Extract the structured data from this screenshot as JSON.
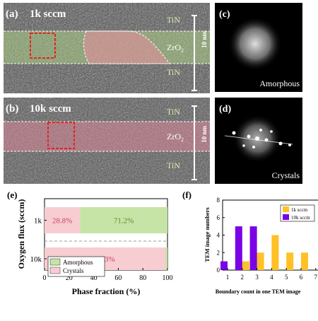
{
  "panels": {
    "a": {
      "tag": "(a)",
      "condition": "1k sccm",
      "top_layer": "TiN",
      "mid_layer": "ZrO",
      "mid_sub": "2",
      "bottom_layer": "TiN",
      "scale": "10 nm"
    },
    "b": {
      "tag": "(b)",
      "condition": "10k sccm",
      "top_layer": "TiN",
      "mid_layer": "ZrO",
      "mid_sub": "2",
      "bottom_layer": "TiN",
      "scale": "10 nm"
    },
    "c": {
      "tag": "(c)",
      "caption": "Amorphous"
    },
    "d": {
      "tag": "(d)",
      "caption": "Crystals"
    }
  },
  "colors": {
    "amorphous": "#c5e4a6",
    "crystals": "#f7cdd2",
    "bar_1k": "#ffc125",
    "bar_10k": "#7a00e6",
    "highlight_box": "#e3261e",
    "pct_crystal_text": "#cc3c6c",
    "pct_amorph_text": "#5a8a2a"
  },
  "chart_data": [
    {
      "type": "bar",
      "orientation": "horizontal",
      "stacked": true,
      "tag": "(e)",
      "categories": [
        "1k",
        "10k"
      ],
      "series": [
        {
          "name": "Crystals",
          "values": [
            28.8,
            98.3
          ],
          "labels": [
            "28.8%",
            "98.3%"
          ]
        },
        {
          "name": "Amorphous",
          "values": [
            71.2,
            1.7
          ],
          "labels": [
            "71.2%",
            ""
          ]
        }
      ],
      "xlabel": "Phase fraction (%)",
      "ylabel": "Oxygen flux (sccm)",
      "xlim": [
        0,
        100
      ],
      "xticks": [
        "0",
        "20",
        "40",
        "60",
        "80",
        "100"
      ],
      "legend": {
        "position": "bottom-left",
        "items": [
          "Amorphous",
          "Crystals"
        ]
      }
    },
    {
      "type": "bar",
      "tag": "(f)",
      "x": [
        1,
        2,
        3,
        4,
        5,
        6,
        7
      ],
      "xticks": [
        "1",
        "2",
        "3",
        "4",
        "5",
        "6",
        "7"
      ],
      "series": [
        {
          "name": "1k sccm",
          "values": [
            0,
            1,
            2,
            4,
            2,
            2,
            0
          ]
        },
        {
          "name": "10k sccm",
          "values": [
            1,
            5,
            5,
            0,
            0,
            0,
            0
          ]
        }
      ],
      "xlabel": "Boundary count in one TEM image",
      "ylabel": "TEM image numbers",
      "xlim": [
        0,
        7
      ],
      "ylim": [
        0,
        8
      ],
      "yticks": [
        "0",
        "2",
        "4",
        "6",
        "8"
      ],
      "legend": {
        "position": "top-right"
      }
    }
  ]
}
